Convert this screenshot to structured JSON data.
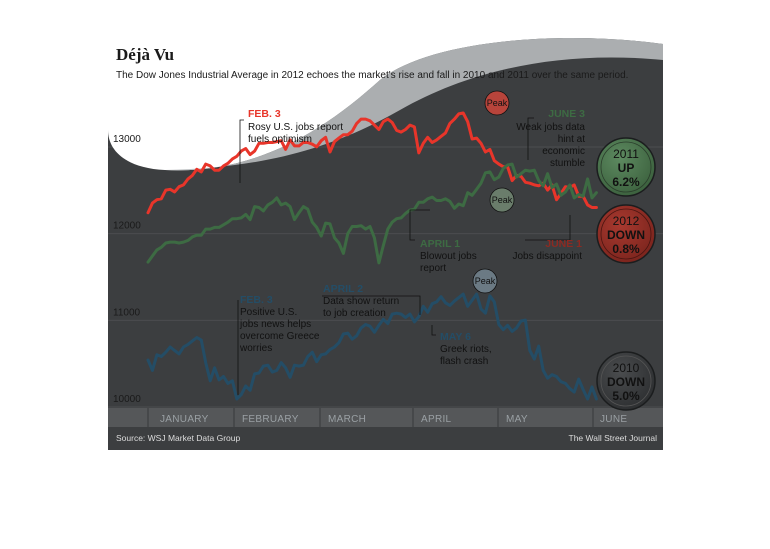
{
  "header": {
    "title": "Déjà Vu",
    "subtitle": "The Dow Jones Industrial Average in 2012 echoes the market's rise and fall in 2010 and 2011 over the same period."
  },
  "footer": {
    "source": "Source: WSJ Market Data Group",
    "credit": "The Wall Street Journal"
  },
  "colors": {
    "background": "#3c3e40",
    "axis_band": "#555759",
    "series_2012": "#e8352a",
    "series_2011": "#3d6b43",
    "series_2010": "#244d66",
    "badge_2011": "#436b45",
    "badge_2012": "#8c2a22",
    "badge_2010": "#353739"
  },
  "chart_data": {
    "type": "line",
    "title": "Déjà Vu",
    "x_axis": {
      "type": "month",
      "labels": [
        "JANUARY",
        "FEBRUARY",
        "MARCH",
        "APRIL",
        "MAY",
        "JUNE"
      ],
      "range": [
        1,
        6.1
      ]
    },
    "y_axis": {
      "ticks": [
        "13000",
        "12000",
        "11000",
        "10000"
      ],
      "range": [
        9850,
        13300
      ]
    },
    "grid": true,
    "legend": "none",
    "series": [
      {
        "name": "2012",
        "x": [
          1.0,
          1.05,
          1.1,
          1.15,
          1.2,
          1.25,
          1.3,
          1.35,
          1.4,
          1.45,
          1.5,
          1.55,
          1.6,
          1.65,
          1.7,
          1.75,
          1.8,
          1.85,
          1.9,
          1.95,
          2.0,
          2.05,
          2.1,
          2.15,
          2.2,
          2.25,
          2.3,
          2.35,
          2.4,
          2.45,
          2.5,
          2.55,
          2.6,
          2.65,
          2.7,
          2.75,
          2.8,
          2.85,
          2.9,
          2.95,
          3.0,
          3.05,
          3.1,
          3.15,
          3.2,
          3.25,
          3.3,
          3.35,
          3.4,
          3.45,
          3.5,
          3.55,
          3.6,
          3.65,
          3.7,
          3.75,
          3.8,
          3.85,
          3.9,
          3.95,
          4.0,
          4.05,
          4.1,
          4.15,
          4.2,
          4.25,
          4.3,
          4.35,
          4.4,
          4.45,
          4.5,
          4.55,
          4.6,
          4.65,
          4.7,
          4.75,
          4.8,
          4.85,
          4.9,
          4.95,
          5.0,
          5.05,
          5.1,
          5.15,
          5.2,
          5.25,
          5.3,
          5.35,
          5.4,
          5.45,
          5.5,
          5.55,
          5.6,
          5.65,
          5.7,
          5.75,
          5.8,
          5.85,
          5.9,
          5.95,
          6.0,
          6.05
        ],
        "values": [
          12150,
          12260,
          12300,
          12310,
          12410,
          12420,
          12390,
          12450,
          12470,
          12540,
          12580,
          12650,
          12620,
          12710,
          12690,
          12640,
          12640,
          12690,
          12720,
          12770,
          12800,
          12860,
          12890,
          12820,
          12860,
          12950,
          12950,
          12960,
          12960,
          12970,
          12980,
          12880,
          12990,
          12920,
          12920,
          12960,
          12960,
          12940,
          12910,
          12980,
          13020,
          12850,
          12970,
          13010,
          13050,
          13050,
          13090,
          13180,
          13230,
          13230,
          13210,
          13160,
          13110,
          13200,
          13230,
          13190,
          13100,
          13080,
          13110,
          13160,
          13140,
          12840,
          12950,
          13020,
          12960,
          12990,
          13030,
          13070,
          13180,
          13230,
          13290,
          13300,
          13200,
          13000,
          13010,
          12950,
          12850,
          12880,
          12750,
          12710,
          12680,
          12680,
          12520,
          12580,
          12570,
          12500,
          12490,
          12470,
          12460,
          12490,
          12410,
          12470,
          12300,
          12370,
          12450,
          12440,
          12470,
          12340,
          12340,
          12240,
          12210,
          12210
        ]
      },
      {
        "name": "2011",
        "x": [
          1.0,
          1.05,
          1.1,
          1.15,
          1.2,
          1.25,
          1.3,
          1.35,
          1.4,
          1.45,
          1.5,
          1.55,
          1.6,
          1.65,
          1.7,
          1.75,
          1.8,
          1.85,
          1.9,
          1.95,
          2.0,
          2.05,
          2.1,
          2.15,
          2.2,
          2.25,
          2.3,
          2.35,
          2.4,
          2.45,
          2.5,
          2.55,
          2.6,
          2.65,
          2.7,
          2.75,
          2.8,
          2.85,
          2.9,
          2.95,
          3.0,
          3.05,
          3.1,
          3.15,
          3.2,
          3.25,
          3.3,
          3.35,
          3.4,
          3.45,
          3.5,
          3.55,
          3.6,
          3.65,
          3.7,
          3.75,
          3.8,
          3.85,
          3.9,
          3.95,
          4.0,
          4.05,
          4.1,
          4.15,
          4.2,
          4.25,
          4.3,
          4.35,
          4.4,
          4.45,
          4.5,
          4.55,
          4.6,
          4.65,
          4.7,
          4.75,
          4.8,
          4.85,
          4.9,
          4.95,
          5.0,
          5.05,
          5.1,
          5.15,
          5.2,
          5.25,
          5.3,
          5.35,
          5.4,
          5.45,
          5.5,
          5.55,
          5.6,
          5.65,
          5.7,
          5.75,
          5.8,
          5.85,
          5.9,
          5.95,
          6.0,
          6.05
        ],
        "values": [
          11580,
          11650,
          11720,
          11750,
          11800,
          11810,
          11810,
          11800,
          11810,
          11830,
          11870,
          11890,
          11890,
          11960,
          11960,
          11980,
          11980,
          12010,
          12040,
          12080,
          12080,
          12090,
          12130,
          12070,
          12220,
          12210,
          12170,
          12240,
          12270,
          12320,
          12240,
          12260,
          12220,
          12070,
          12150,
          12220,
          12190,
          12040,
          11980,
          11880,
          12030,
          12020,
          11860,
          11800,
          11680,
          11910,
          11990,
          11990,
          12000,
          11960,
          11990,
          11860,
          11570,
          11770,
          11960,
          12040,
          12080,
          12090,
          12140,
          12180,
          12190,
          12270,
          12270,
          12310,
          12330,
          12290,
          12290,
          12310,
          12280,
          12200,
          12250,
          12230,
          12380,
          12350,
          12420,
          12490,
          12610,
          12620,
          12530,
          12560,
          12660,
          12700,
          12710,
          12560,
          12600,
          12640,
          12630,
          12640,
          12520,
          12460,
          12600,
          12440,
          12480,
          12350,
          12390,
          12470,
          12320,
          12360,
          12340,
          12540,
          12320,
          12380
        ]
      },
      {
        "name": "2010",
        "x": [
          1.0,
          1.05,
          1.1,
          1.15,
          1.2,
          1.25,
          1.3,
          1.35,
          1.4,
          1.45,
          1.5,
          1.55,
          1.6,
          1.65,
          1.7,
          1.75,
          1.8,
          1.85,
          1.9,
          1.95,
          2.0,
          2.05,
          2.1,
          2.15,
          2.2,
          2.25,
          2.3,
          2.35,
          2.4,
          2.45,
          2.5,
          2.55,
          2.6,
          2.65,
          2.7,
          2.75,
          2.8,
          2.85,
          2.9,
          2.95,
          3.0,
          3.05,
          3.1,
          3.15,
          3.2,
          3.25,
          3.3,
          3.35,
          3.4,
          3.45,
          3.5,
          3.55,
          3.6,
          3.65,
          3.7,
          3.75,
          3.8,
          3.85,
          3.9,
          3.95,
          4.0,
          4.05,
          4.1,
          4.15,
          4.2,
          4.25,
          4.3,
          4.35,
          4.4,
          4.45,
          4.5,
          4.55,
          4.6,
          4.65,
          4.7,
          4.75,
          4.8,
          4.85,
          4.9,
          4.95,
          5.0,
          5.05,
          5.1,
          5.15,
          5.2,
          5.25,
          5.3,
          5.35,
          5.4,
          5.45,
          5.5,
          5.55,
          5.6,
          5.65,
          5.7,
          5.75,
          5.8,
          5.85,
          5.9,
          5.95,
          6.0,
          6.05
        ],
        "values": [
          10450,
          10330,
          10510,
          10490,
          10540,
          10600,
          10560,
          10520,
          10600,
          10630,
          10670,
          10710,
          10680,
          10420,
          10210,
          10360,
          10220,
          10260,
          10180,
          10210,
          10000,
          10050,
          10150,
          10100,
          10290,
          10300,
          10380,
          10390,
          10310,
          10330,
          10420,
          10360,
          10250,
          10390,
          10380,
          10390,
          10490,
          10540,
          10430,
          10510,
          10520,
          10570,
          10600,
          10650,
          10750,
          10760,
          10690,
          10730,
          10820,
          10860,
          10840,
          10770,
          10850,
          10920,
          10870,
          10980,
          10990,
          10980,
          10940,
          10980,
          10890,
          10950,
          11070,
          11000,
          11100,
          11120,
          11180,
          11110,
          11080,
          11130,
          11170,
          11210,
          11070,
          11140,
          11210,
          11040,
          10990,
          11190,
          11120,
          10860,
          10800,
          10850,
          10780,
          10820,
          10900,
          10910,
          10560,
          10460,
          10610,
          10330,
          10240,
          10280,
          10260,
          10200,
          10180,
          10120,
          10080,
          10230,
          10110,
          10000,
          10140,
          10000
        ]
      }
    ],
    "annotations": [
      {
        "heading": "FEB. 3",
        "lines": [
          "Rosy U.S. jobs report",
          "fuels optimism"
        ]
      },
      {
        "heading": "JUNE 3",
        "lines": [
          "Weak jobs data",
          "hint at",
          "economic",
          "stumble"
        ]
      },
      {
        "heading": "APRIL 1",
        "lines": [
          "Blowout jobs",
          "report"
        ]
      },
      {
        "heading": "JUNE 1",
        "lines": [
          "Jobs disappoint"
        ]
      },
      {
        "heading": "FEB. 3",
        "lines": [
          "Positive U.S.",
          "jobs news helps",
          "overcome Greece",
          "worries"
        ]
      },
      {
        "heading": "APRIL 2",
        "lines": [
          "Data show return",
          "to job creation"
        ]
      },
      {
        "heading": "MAY 6",
        "lines": [
          "Greek riots,",
          "flash crash"
        ]
      }
    ],
    "peaks": [
      "Peak",
      "Peak",
      "Peak"
    ],
    "badges": [
      {
        "year": "2011",
        "direction": "UP",
        "change": "6.2%"
      },
      {
        "year": "2012",
        "direction": "DOWN",
        "change": "0.8%"
      },
      {
        "year": "2010",
        "direction": "DOWN",
        "change": "5.0%"
      }
    ]
  }
}
